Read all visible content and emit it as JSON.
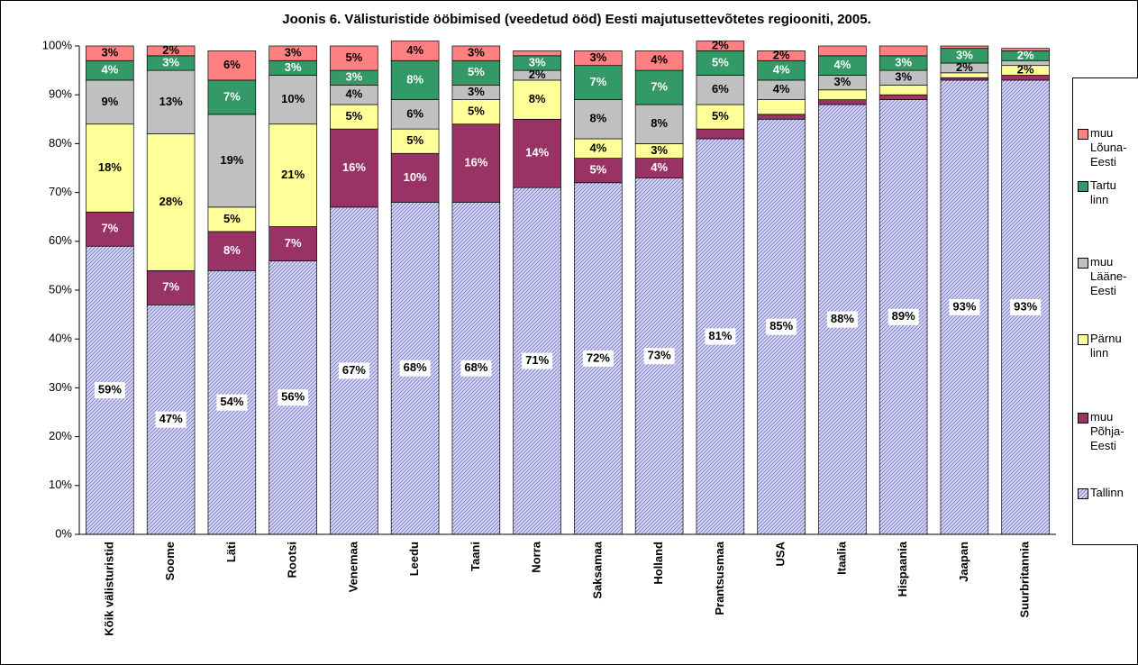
{
  "chart_data": {
    "type": "stacked_bar",
    "title": "Joonis 6. Välisturistide ööbimised (veedetud ööd) Eesti majutusettevõtetes regiooniti, 2005.",
    "categories": [
      "Kõik välisturistid",
      "Soome",
      "Läti",
      "Rootsi",
      "Venemaa",
      "Leedu",
      "Taani",
      "Norra",
      "Saksamaa",
      "Holland",
      "Prantsusmaa",
      "USA",
      "Itaalia",
      "Hispaania",
      "Jaapan",
      "Suurbritannia"
    ],
    "series": [
      {
        "name": "Tallinn",
        "color": "#c8c8f0",
        "values": [
          59,
          47,
          54,
          56,
          67,
          68,
          68,
          71,
          72,
          73,
          81,
          85,
          88,
          89,
          93,
          93
        ],
        "value_labels": [
          "59%",
          "47%",
          "54%",
          "56%",
          "67%",
          "68%",
          "68%",
          "71%",
          "72%",
          "73%",
          "81%",
          "85%",
          "88%",
          "89%",
          "93%",
          "93%"
        ]
      },
      {
        "name": "muu Põhja-Eesti",
        "color": "#993366",
        "values": [
          7,
          7,
          8,
          7,
          16,
          10,
          16,
          14,
          5,
          4,
          2,
          1,
          1,
          1,
          0.5,
          1
        ],
        "value_labels": [
          "7%",
          "7%",
          "8%",
          "7%",
          "16%",
          "10%",
          "16%",
          "14%",
          "5%",
          "4%",
          null,
          null,
          null,
          null,
          null,
          null
        ]
      },
      {
        "name": "Pärnu linn",
        "color": "#ffff99",
        "values": [
          18,
          28,
          5,
          21,
          5,
          5,
          5,
          8,
          4,
          3,
          5,
          3,
          2,
          2,
          1,
          2
        ],
        "value_labels": [
          "18%",
          "28%",
          "5%",
          "21%",
          "5%",
          "5%",
          "5%",
          "8%",
          "4%",
          "3%",
          "5%",
          null,
          null,
          null,
          null,
          "2%"
        ]
      },
      {
        "name": "muu Lääne-Eesti",
        "color": "#c0c0c0",
        "values": [
          9,
          13,
          19,
          10,
          4,
          6,
          3,
          2,
          8,
          8,
          6,
          4,
          3,
          3,
          2,
          1
        ],
        "value_labels": [
          "9%",
          "13%",
          "19%",
          "10%",
          "4%",
          "6%",
          "3%",
          "2%",
          "8%",
          "8%",
          "6%",
          "4%",
          "3%",
          "3%",
          "2%",
          null
        ]
      },
      {
        "name": "Tartu linn",
        "color": "#339966",
        "values": [
          4,
          3,
          7,
          3,
          3,
          8,
          5,
          3,
          7,
          7,
          5,
          4,
          4,
          3,
          3,
          2
        ],
        "value_labels": [
          "4%",
          "3%",
          "7%",
          "3%",
          "3%",
          "8%",
          "5%",
          "3%",
          "7%",
          "7%",
          "5%",
          "4%",
          "4%",
          "3%",
          "3%",
          "2%"
        ]
      },
      {
        "name": "muu Lõuna-Eesti",
        "color": "#ff8080",
        "values": [
          3,
          2,
          6,
          3,
          5,
          4,
          3,
          1,
          3,
          4,
          2,
          2,
          2,
          2,
          0.5,
          0.5
        ],
        "value_labels": [
          "3%",
          "2%",
          "6%",
          "3%",
          "5%",
          "4%",
          "3%",
          null,
          "3%",
          "4%",
          "2%",
          "2%",
          null,
          null,
          null,
          null
        ]
      }
    ],
    "ylim": [
      0,
      100
    ],
    "yticks": [
      {
        "value": 0,
        "label": "0%"
      },
      {
        "value": 10,
        "label": "10%"
      },
      {
        "value": 20,
        "label": "20%"
      },
      {
        "value": 30,
        "label": "30%"
      },
      {
        "value": 40,
        "label": "40%"
      },
      {
        "value": 50,
        "label": "50%"
      },
      {
        "value": 60,
        "label": "60%"
      },
      {
        "value": 70,
        "label": "70%"
      },
      {
        "value": 80,
        "label": "80%"
      },
      {
        "value": 90,
        "label": "90%"
      },
      {
        "value": 100,
        "label": "100%"
      }
    ],
    "grid": false
  }
}
